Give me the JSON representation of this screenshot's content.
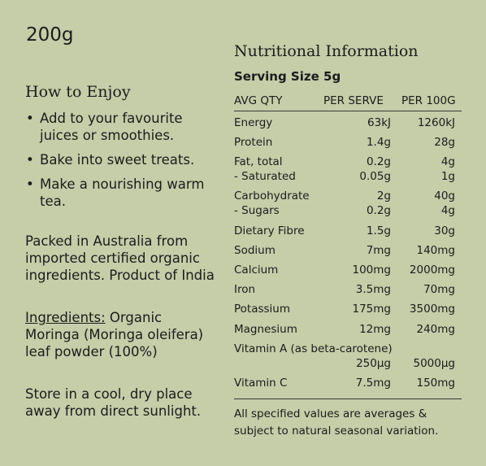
{
  "left": {
    "weight": "200g",
    "how_to_enjoy_title": "How to Enjoy",
    "bullets": [
      "Add to your favourite juices or smoothies.",
      "Bake into sweet treats.",
      "Make a nourishing warm tea."
    ],
    "packed": "Packed in Australia from imported certified organic ingredients. Product of India",
    "ingredients_label": "Ingredients:",
    "ingredients_text": " Organic Moringa (Moringa oleifera) leaf powder (100%)",
    "storage": "Store in a cool, dry place away from direct sunlight."
  },
  "nutrition": {
    "title": "Nutritional Information",
    "serving_size": "Serving Size 5g",
    "headers": {
      "label": "AVG  QTY",
      "per_serve": "PER SERVE",
      "per_100g": "PER 100G"
    },
    "rows": [
      {
        "label": "Energy",
        "serve": "63kJ",
        "per100": "1260kJ"
      },
      {
        "label": "Protein",
        "serve": "1.4g",
        "per100": "28g"
      },
      {
        "label": "Fat, total",
        "serve": "0.2g",
        "per100": "4g"
      },
      {
        "label": "- Saturated",
        "serve": "0.05g",
        "per100": "1g"
      },
      {
        "label": "Carbohydrate",
        "serve": "2g",
        "per100": "40g"
      },
      {
        "label": "- Sugars",
        "serve": "0.2g",
        "per100": "4g"
      },
      {
        "label": "Dietary Fibre",
        "serve": "1.5g",
        "per100": "30g"
      },
      {
        "label": "Sodium",
        "serve": "7mg",
        "per100": "140mg"
      },
      {
        "label": "Calcium",
        "serve": "100mg",
        "per100": "2000mg"
      },
      {
        "label": "Iron",
        "serve": "3.5mg",
        "per100": "70mg"
      },
      {
        "label": "Potassium",
        "serve": "175mg",
        "per100": "3500mg"
      },
      {
        "label": "Magnesium",
        "serve": "12mg",
        "per100": "240mg"
      },
      {
        "label": "Vitamin A (as beta-carotene)",
        "serve": "",
        "per100": ""
      },
      {
        "label": "",
        "serve": "250μg",
        "per100": "5000μg"
      },
      {
        "label": "Vitamin C",
        "serve": "7.5mg",
        "per100": "150mg"
      }
    ],
    "footnote": "All specified values are averages & subject to natural seasonal variation."
  }
}
